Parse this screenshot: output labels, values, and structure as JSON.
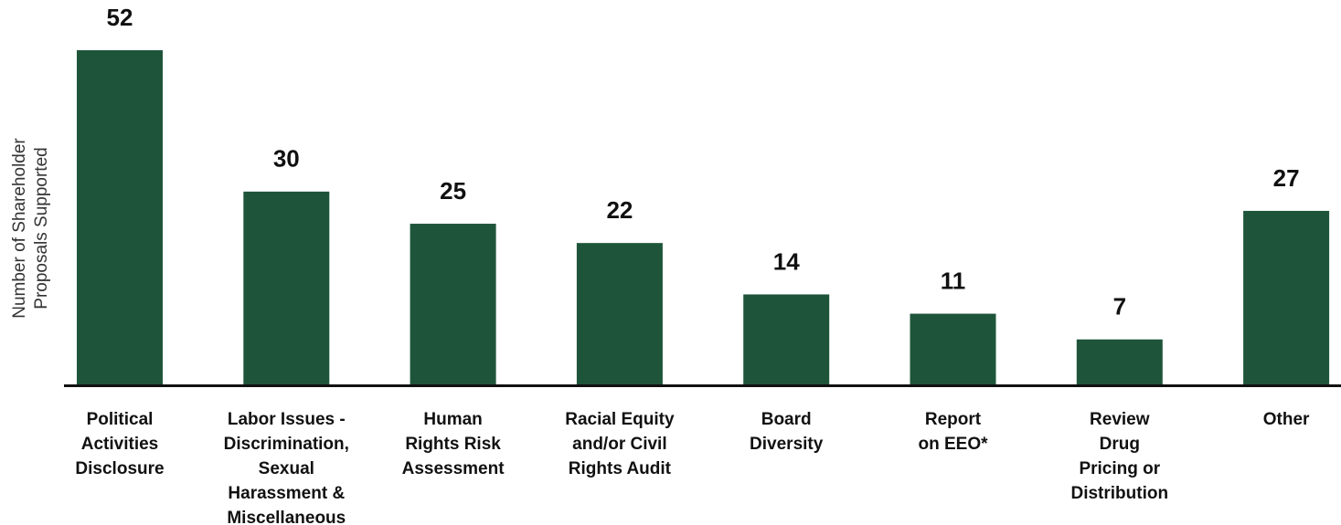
{
  "chart_data": {
    "type": "bar",
    "y_label": "Number of Shareholder\nProposals Supported",
    "categories": [
      "Political\nActivities\nDisclosure",
      "Labor Issues -\nDiscrimination,\nSexual\nHarassment &\nMiscellaneous",
      "Human\nRights Risk\nAssessment",
      "Racial Equity\nand/or Civil\nRights Audit",
      "Board\nDiversity",
      "Report\non EEO*",
      "Review\nDrug\nPricing or\nDistribution",
      "Other"
    ],
    "values": [
      52,
      30,
      25,
      22,
      14,
      11,
      7,
      27
    ],
    "color": "#1e553a"
  }
}
